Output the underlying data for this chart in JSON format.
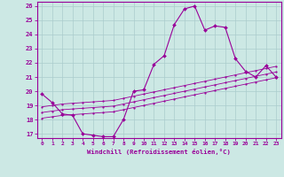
{
  "background_color": "#cce8e4",
  "grid_color": "#aacccc",
  "line_color": "#990099",
  "xlabel": "Windchill (Refroidissement éolien,°C)",
  "xlim": [
    -0.5,
    23.5
  ],
  "ylim": [
    16.7,
    26.3
  ],
  "yticks": [
    17,
    18,
    19,
    20,
    21,
    22,
    23,
    24,
    25,
    26
  ],
  "xticks": [
    0,
    1,
    2,
    3,
    4,
    5,
    6,
    7,
    8,
    9,
    10,
    11,
    12,
    13,
    14,
    15,
    16,
    17,
    18,
    19,
    20,
    21,
    22,
    23
  ],
  "line1_x": [
    0,
    1,
    2,
    3,
    4,
    5,
    6,
    7,
    8,
    9,
    10,
    11,
    12,
    13,
    14,
    15,
    16,
    17,
    18,
    19,
    20,
    21,
    22,
    23
  ],
  "line1_y": [
    19.8,
    19.2,
    18.4,
    18.3,
    17.0,
    16.9,
    16.8,
    16.8,
    18.0,
    20.0,
    20.1,
    21.9,
    22.5,
    24.7,
    25.8,
    26.0,
    24.3,
    24.6,
    24.5,
    22.3,
    21.4,
    21.0,
    21.8,
    21.0
  ],
  "line2_x": [
    0,
    1,
    2,
    3,
    4,
    5,
    6,
    7,
    8,
    9,
    10,
    11,
    12,
    13,
    14,
    15,
    16,
    17,
    18,
    19,
    20,
    21,
    22,
    23
  ],
  "line2_y": [
    18.9,
    19.0,
    19.1,
    19.15,
    19.2,
    19.25,
    19.3,
    19.35,
    19.5,
    19.65,
    19.8,
    19.95,
    20.1,
    20.25,
    20.4,
    20.55,
    20.7,
    20.85,
    21.0,
    21.15,
    21.3,
    21.45,
    21.6,
    21.75
  ],
  "line3_x": [
    0,
    1,
    2,
    3,
    4,
    5,
    6,
    7,
    8,
    9,
    10,
    11,
    12,
    13,
    14,
    15,
    16,
    17,
    18,
    19,
    20,
    21,
    22,
    23
  ],
  "line3_y": [
    18.5,
    18.6,
    18.7,
    18.75,
    18.8,
    18.85,
    18.9,
    18.95,
    19.1,
    19.25,
    19.4,
    19.55,
    19.7,
    19.85,
    20.0,
    20.15,
    20.3,
    20.45,
    20.6,
    20.75,
    20.9,
    21.05,
    21.2,
    21.35
  ],
  "line4_x": [
    0,
    1,
    2,
    3,
    4,
    5,
    6,
    7,
    8,
    9,
    10,
    11,
    12,
    13,
    14,
    15,
    16,
    17,
    18,
    19,
    20,
    21,
    22,
    23
  ],
  "line4_y": [
    18.1,
    18.2,
    18.3,
    18.35,
    18.4,
    18.45,
    18.5,
    18.55,
    18.7,
    18.85,
    19.0,
    19.15,
    19.3,
    19.45,
    19.6,
    19.75,
    19.9,
    20.05,
    20.2,
    20.35,
    20.5,
    20.65,
    20.8,
    20.95
  ]
}
